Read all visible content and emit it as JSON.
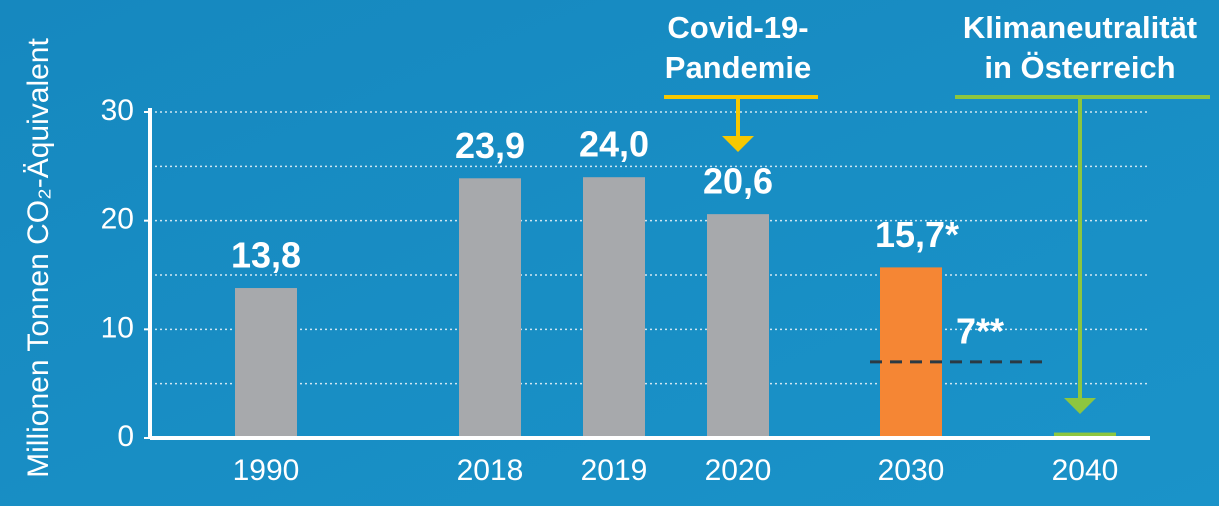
{
  "chart_data": {
    "type": "bar",
    "y_label": "Millionen Tonnen CO₂-Äquivalent",
    "categories": [
      "1990",
      "2018",
      "2019",
      "2020",
      "2030",
      "2040"
    ],
    "values": [
      13.8,
      23.9,
      24.0,
      20.6,
      15.7,
      0.5
    ],
    "value_labels": [
      "13,8",
      "23,9",
      "24,0",
      "20,6",
      "15,7*",
      null
    ],
    "colors": [
      "#a7a9ac",
      "#a7a9ac",
      "#a7a9ac",
      "#a7a9ac",
      "#f58634",
      "#8dc63f"
    ],
    "ylim": [
      0,
      30
    ],
    "yticks": [
      0,
      10,
      20,
      30
    ],
    "ygrid": [
      5,
      10,
      15,
      20,
      25,
      30
    ],
    "reference": {
      "value": 7,
      "label": "7**",
      "color": "#2b3a44"
    },
    "annotations": [
      {
        "lines": [
          "Covid-19-",
          "Pandemie"
        ],
        "color": "#f6c800"
      },
      {
        "lines": [
          "Klimaneutralität",
          "in Österreich"
        ],
        "color": "#8dc63f"
      }
    ]
  }
}
